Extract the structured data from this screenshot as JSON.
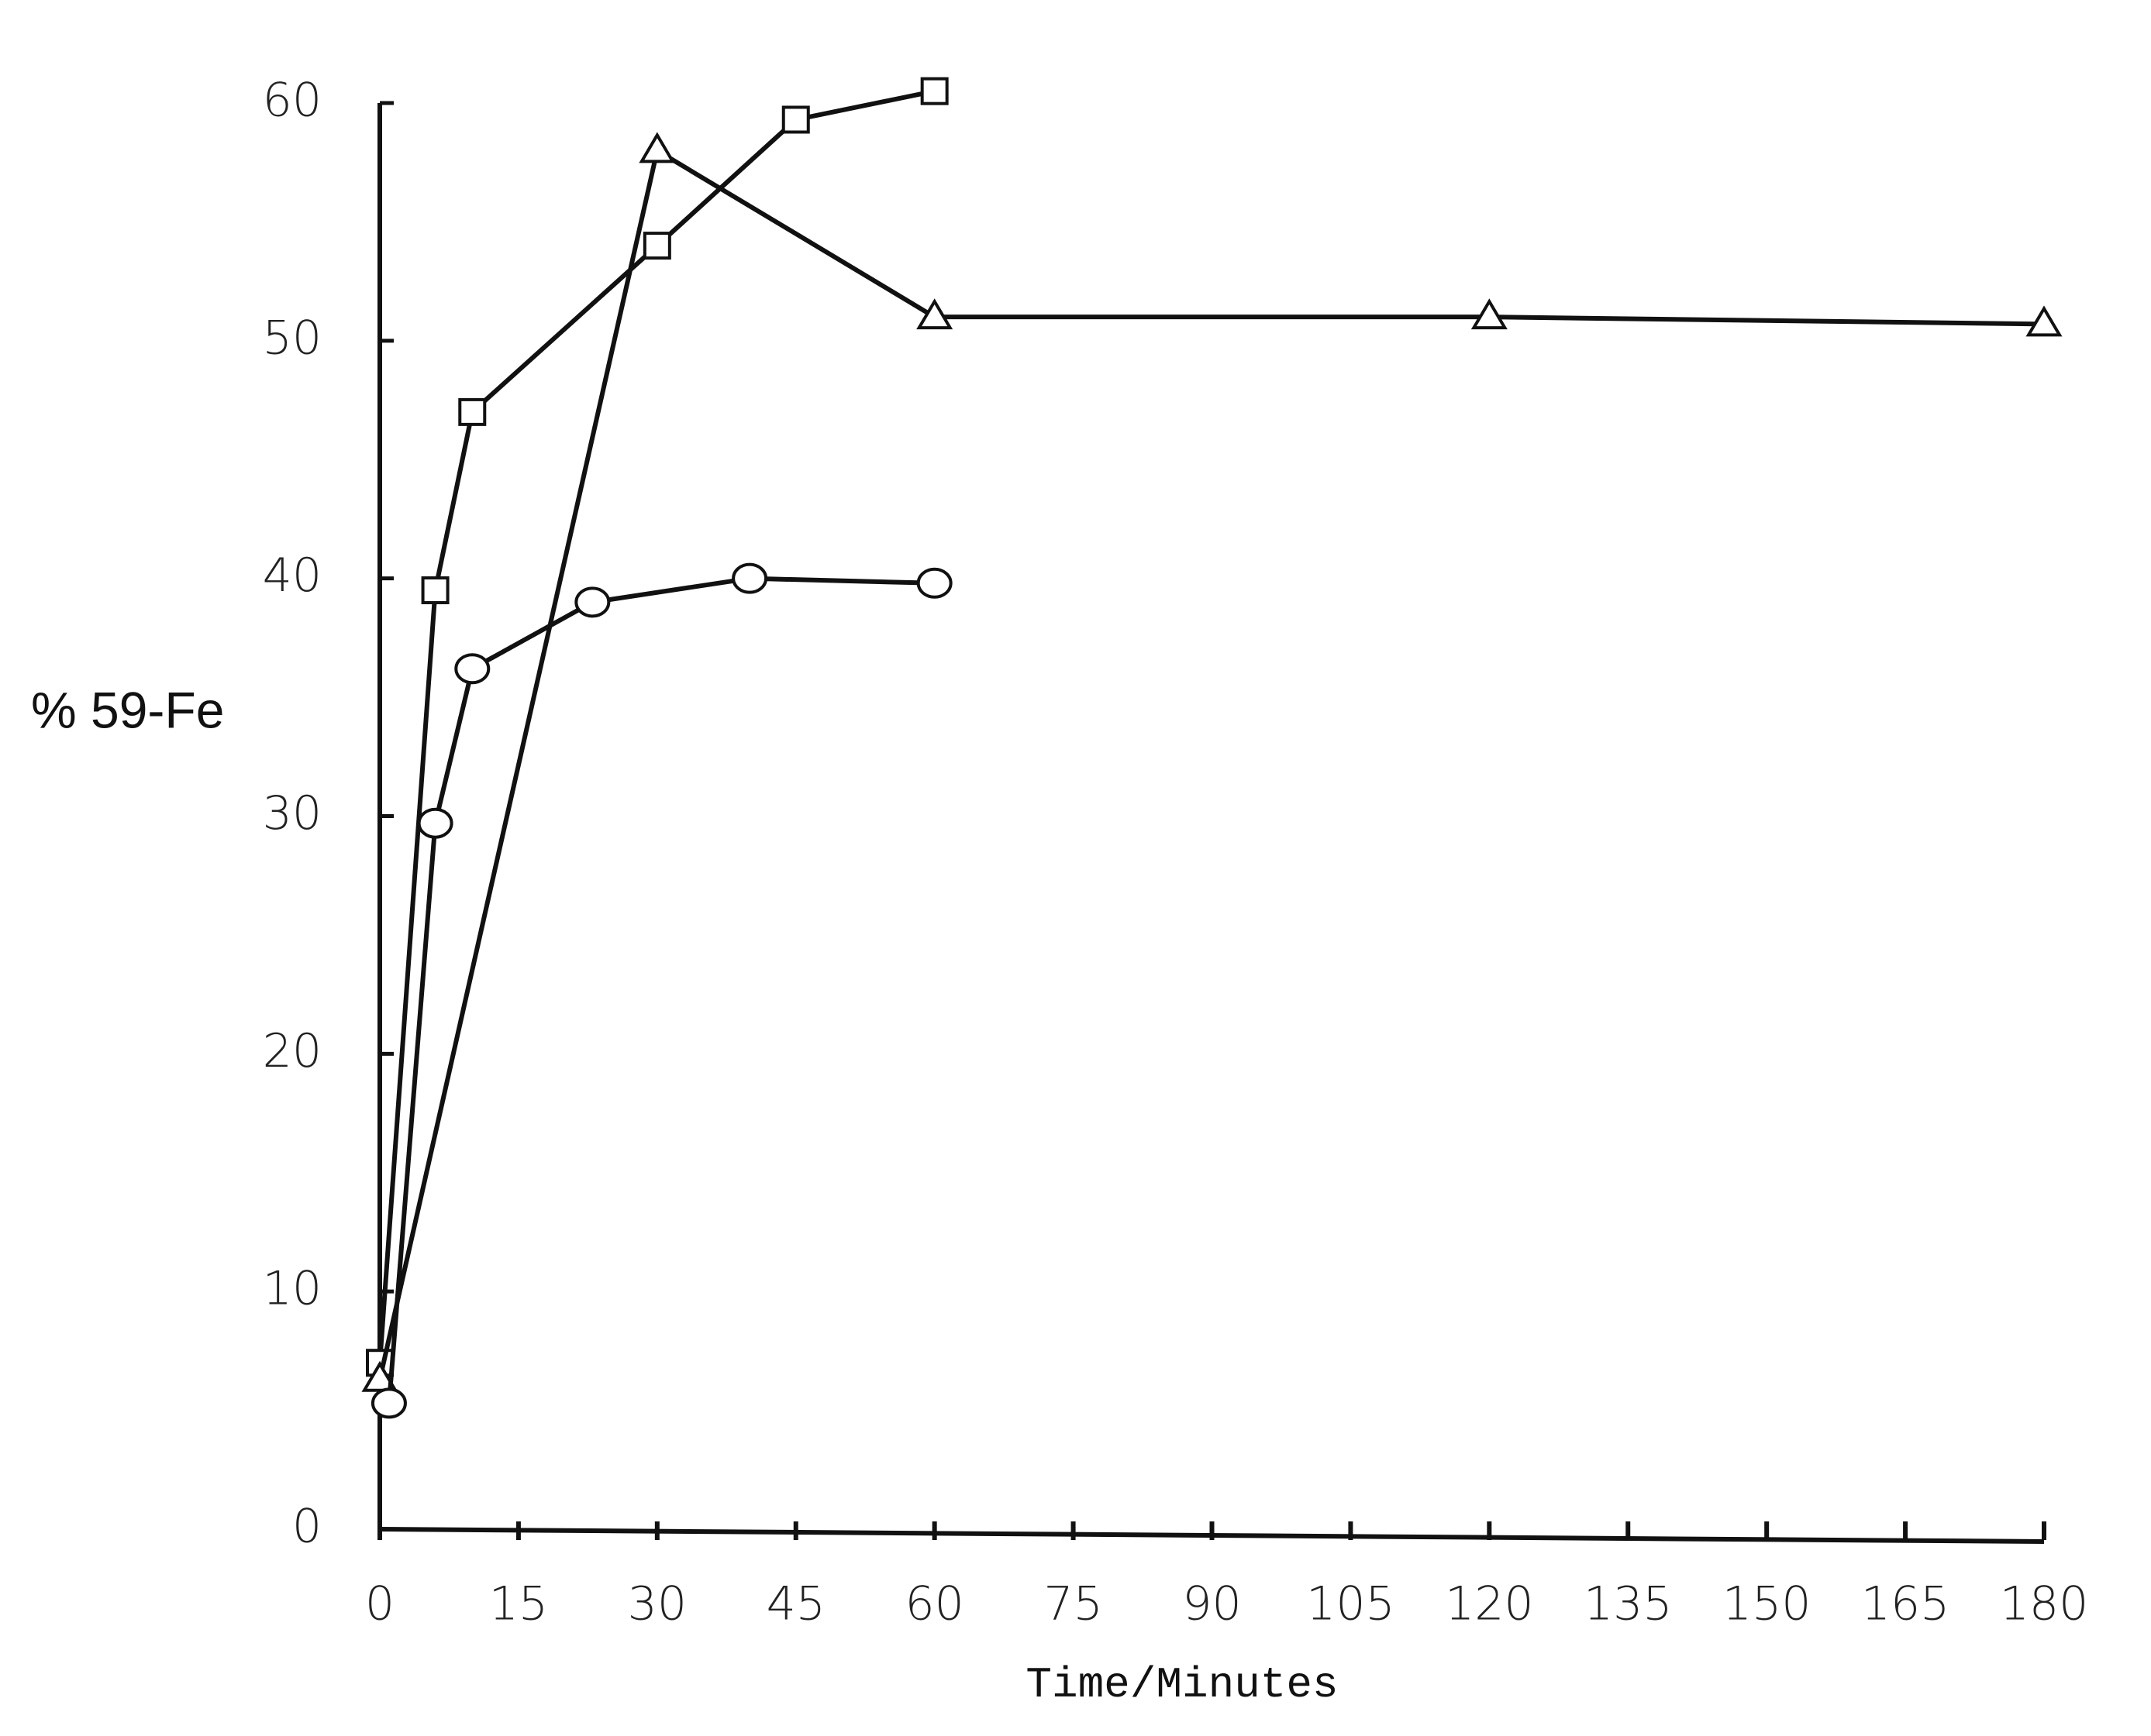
{
  "chart_data": {
    "type": "line",
    "ylabel": "% 59-Fe",
    "xlabel": "Time/Minutes",
    "xlim": [
      0,
      180
    ],
    "xticks": [
      0,
      15,
      30,
      45,
      60,
      75,
      90,
      105,
      120,
      135,
      150,
      165,
      180
    ],
    "ylim": [
      0,
      60
    ],
    "yticks": [
      0,
      10,
      20,
      30,
      40,
      50,
      60
    ],
    "grid": false,
    "series": [
      {
        "marker": "square",
        "color": "#111111",
        "x": [
          0,
          6,
          10,
          30,
          45,
          60
        ],
        "values": [
          7,
          39.5,
          47,
          54,
          59.3,
          60.5
        ]
      },
      {
        "marker": "triangle",
        "color": "#111111",
        "x": [
          0,
          30,
          60,
          120,
          180
        ],
        "values": [
          6.3,
          58,
          51,
          51,
          50.7
        ]
      },
      {
        "marker": "circle",
        "color": "#111111",
        "x": [
          1,
          6,
          10,
          23,
          40,
          60
        ],
        "values": [
          5.3,
          29.7,
          36.2,
          39,
          40,
          39.8
        ]
      }
    ]
  }
}
